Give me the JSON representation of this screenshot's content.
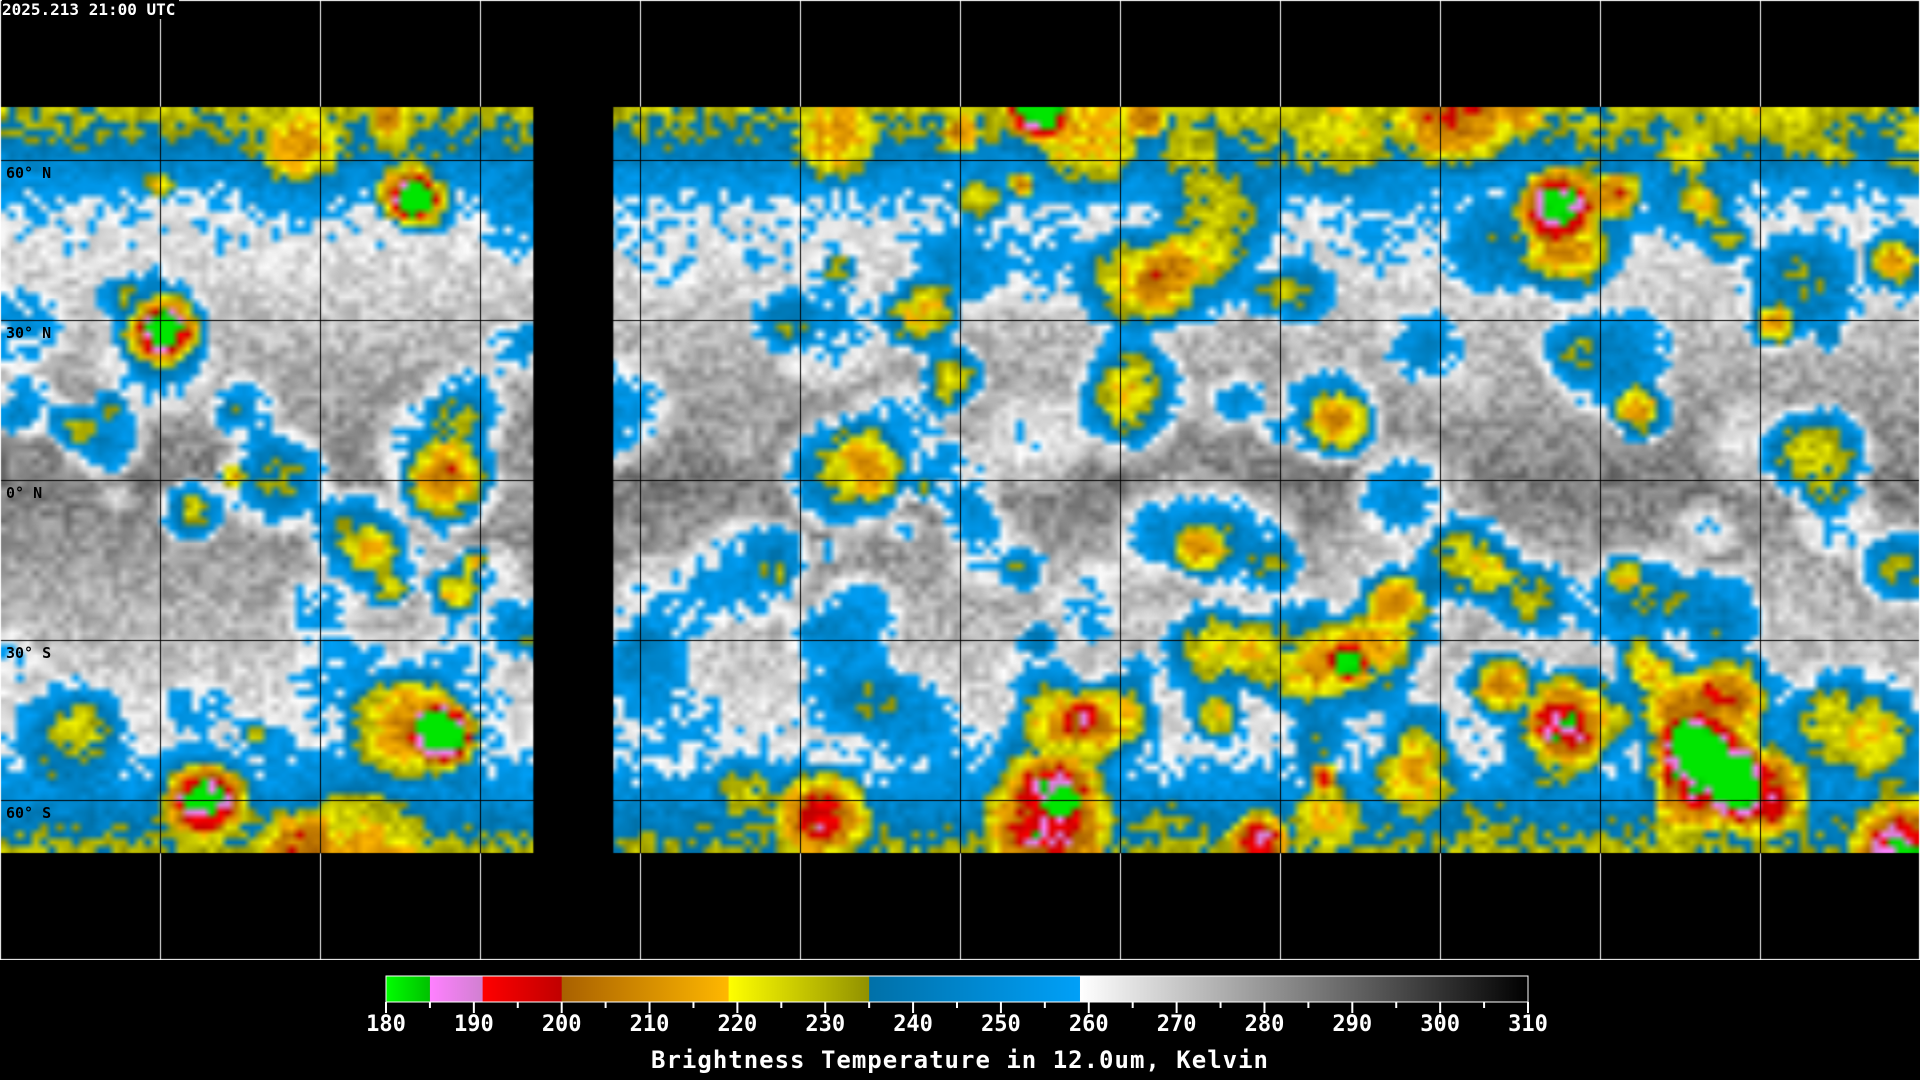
{
  "timestamp": "2025.213 21:00 UTC",
  "chart_data": {
    "type": "heatmap",
    "description_type": "global satellite brightness temperature map, equirectangular",
    "lon_range": [
      -180,
      180
    ],
    "lat_range": [
      -90,
      90
    ],
    "grid_lon_step": 30,
    "grid_lat_step": 30,
    "grid": true,
    "lat_labels": [
      "60° N",
      "30° N",
      "0° N",
      "30° S",
      "60° S"
    ],
    "lat_values": [
      60,
      30,
      0,
      -30,
      -60
    ],
    "colorbar": {
      "title": "Brightness Temperature in 12.0um, Kelvin",
      "range": [
        180,
        310
      ],
      "tick_labels": [
        "180",
        "190",
        "200",
        "210",
        "220",
        "230",
        "240",
        "250",
        "260",
        "270",
        "280",
        "290",
        "300",
        "310"
      ],
      "minor_tick_step": 5,
      "segments": [
        {
          "from": 180,
          "to": 185,
          "colors": [
            "#00ff00",
            "#00c000"
          ]
        },
        {
          "from": 185,
          "to": 191,
          "colors": [
            "#ff80ff",
            "#d080d0"
          ]
        },
        {
          "from": 191,
          "to": 200,
          "colors": [
            "#ff0000",
            "#c00000"
          ]
        },
        {
          "from": 200,
          "to": 219,
          "colors": [
            "#a86000",
            "#ffb800"
          ]
        },
        {
          "from": 219,
          "to": 235,
          "colors": [
            "#ffff00",
            "#909000"
          ]
        },
        {
          "from": 235,
          "to": 259,
          "colors": [
            "#0070a8",
            "#00a0f8"
          ]
        },
        {
          "from": 259,
          "to": 310,
          "colors": [
            "#ffffff",
            "#000000"
          ]
        }
      ]
    }
  }
}
